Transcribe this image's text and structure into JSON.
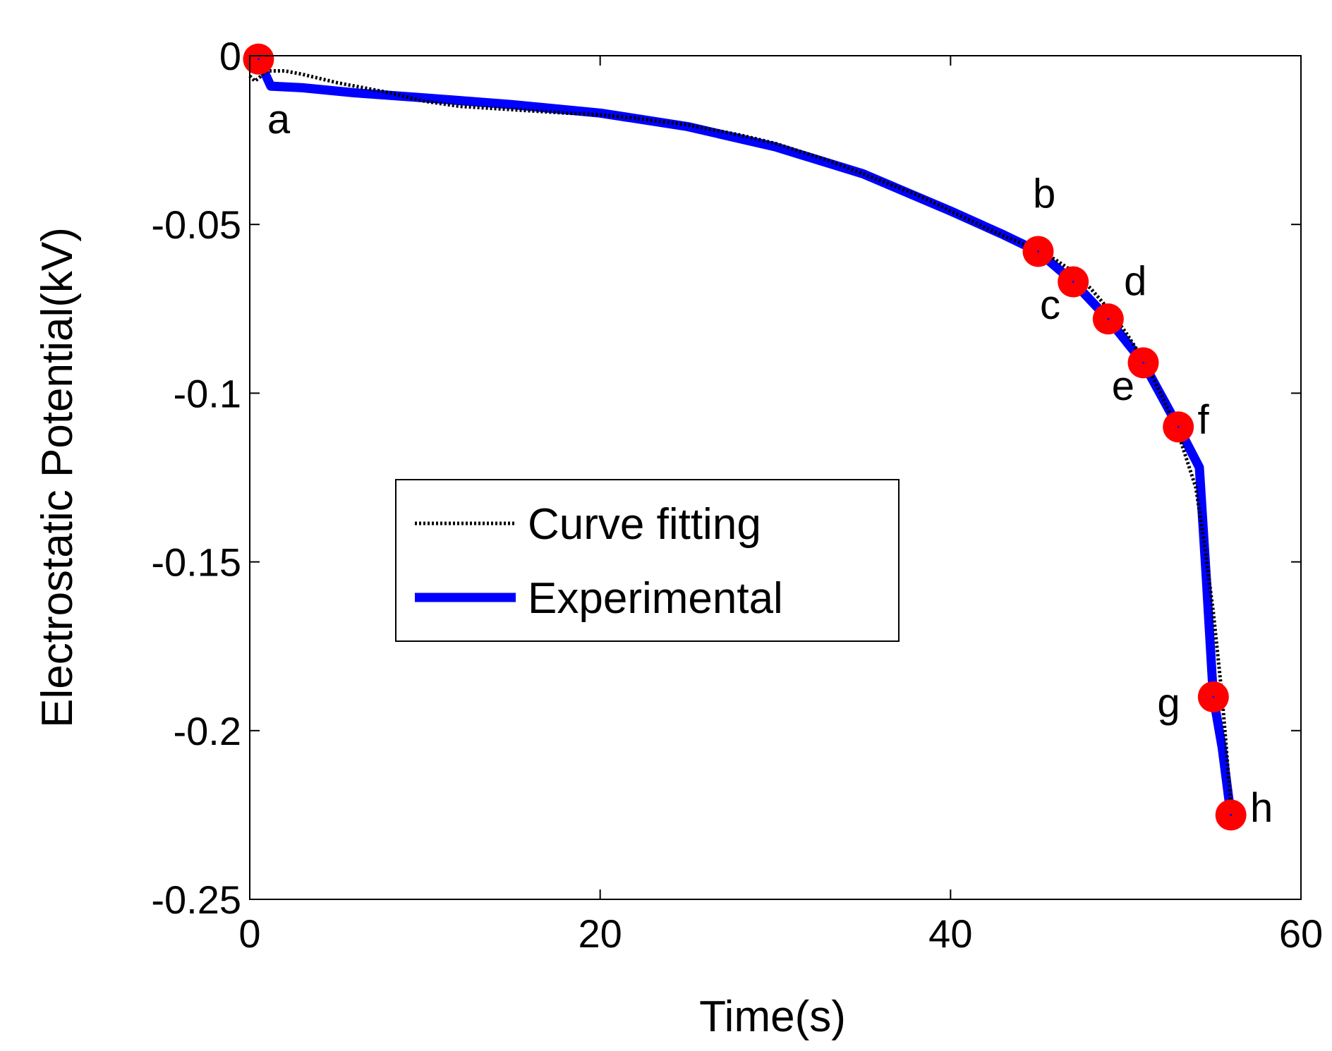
{
  "chart_data": {
    "type": "line",
    "title": "",
    "xlabel": "Time(s)",
    "ylabel": "Electrostatic Potential(kV)",
    "xlim": [
      0,
      60
    ],
    "ylim": [
      -0.25,
      0
    ],
    "xticks": [
      0,
      20,
      40,
      60
    ],
    "xtick_labels": [
      "0",
      "20",
      "40",
      "60"
    ],
    "yticks": [
      0,
      -0.05,
      -0.1,
      -0.15,
      -0.2,
      -0.25
    ],
    "ytick_labels": [
      "0",
      "-0.05",
      "-0.1",
      "-0.15",
      "-0.2",
      "-0.25"
    ],
    "grid": false,
    "legend_position": "center-left",
    "series": [
      {
        "name": "Curve fitting",
        "color": "#000000",
        "style": "dotted",
        "x": [
          0,
          0.3,
          1,
          2,
          3,
          5,
          8,
          10,
          12,
          15,
          18,
          20,
          22,
          25,
          28,
          30,
          33,
          35,
          38,
          40,
          42,
          44,
          45,
          46,
          47,
          48,
          49,
          50,
          51,
          52,
          53,
          54,
          54.5,
          55,
          55.5,
          56
        ],
        "y": [
          -0.006,
          -0.0075,
          -0.0045,
          -0.0045,
          -0.0055,
          -0.008,
          -0.011,
          -0.0135,
          -0.015,
          -0.016,
          -0.017,
          -0.0175,
          -0.0185,
          -0.0205,
          -0.0235,
          -0.026,
          -0.031,
          -0.035,
          -0.041,
          -0.046,
          -0.051,
          -0.0555,
          -0.0575,
          -0.0605,
          -0.064,
          -0.069,
          -0.075,
          -0.082,
          -0.09,
          -0.1,
          -0.112,
          -0.128,
          -0.145,
          -0.165,
          -0.19,
          -0.222
        ]
      },
      {
        "name": "Experimental",
        "color": "#0000ff",
        "style": "solid",
        "x": [
          0.5,
          1.2,
          3,
          6,
          10,
          15,
          20,
          25,
          30,
          35,
          40,
          43,
          45,
          47,
          49,
          51,
          53,
          54.2,
          54.6,
          55,
          55.5,
          56
        ],
        "y": [
          -0.001,
          -0.009,
          -0.0095,
          -0.011,
          -0.0125,
          -0.0145,
          -0.017,
          -0.021,
          -0.027,
          -0.035,
          -0.046,
          -0.053,
          -0.058,
          -0.067,
          -0.078,
          -0.091,
          -0.11,
          -0.122,
          -0.155,
          -0.19,
          -0.205,
          -0.225
        ]
      }
    ],
    "points": [
      {
        "label": "a",
        "x": 0.5,
        "y": -0.001,
        "label_dx": 0.5,
        "label_dy": -0.022
      },
      {
        "label": "b",
        "x": 45,
        "y": -0.058,
        "label_dx": -0.3,
        "label_dy": 0.013
      },
      {
        "label": "c",
        "x": 47,
        "y": -0.067,
        "label_dx": -1.9,
        "label_dy": -0.011
      },
      {
        "label": "d",
        "x": 49,
        "y": -0.078,
        "label_dx": 0.9,
        "label_dy": 0.007
      },
      {
        "label": "e",
        "x": 51,
        "y": -0.091,
        "label_dx": -1.8,
        "label_dy": -0.011
      },
      {
        "label": "f",
        "x": 53,
        "y": -0.11,
        "label_dx": 1.1,
        "label_dy": -0.002
      },
      {
        "label": "g",
        "x": 55,
        "y": -0.19,
        "label_dx": -3.2,
        "label_dy": -0.006
      },
      {
        "label": "h",
        "x": 56,
        "y": -0.225,
        "label_dx": 1.1,
        "label_dy": -0.002
      }
    ],
    "marker_color": "#ff0000"
  }
}
